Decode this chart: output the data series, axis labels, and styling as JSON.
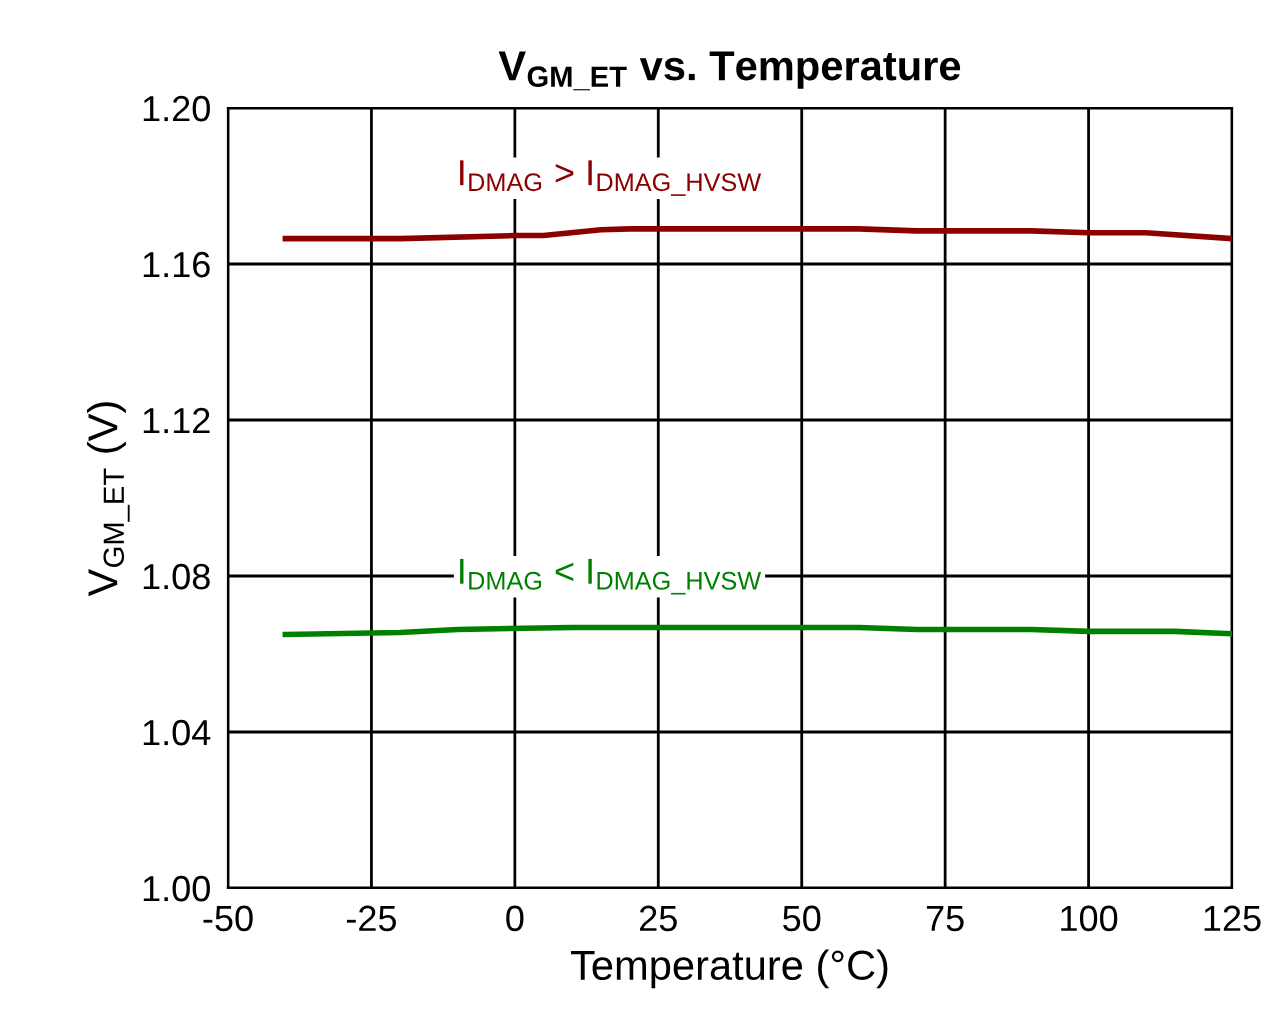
{
  "chart_data": {
    "type": "line",
    "title": "V$_{GM_ET}$ vs. Temperature",
    "xlabel": "Temperature (°C)",
    "ylabel": "V$_{GM_ET}$ (V)",
    "xlim": [
      -50,
      125
    ],
    "xticks": [
      -50,
      -25,
      0,
      25,
      50,
      75,
      100,
      125
    ],
    "ylim": [
      1.0,
      1.2
    ],
    "yticks": [
      {
        "value": 1.0,
        "label": "1.00"
      },
      {
        "value": 1.04,
        "label": "1.04"
      },
      {
        "value": 1.08,
        "label": "1.08"
      },
      {
        "value": 1.12,
        "label": "1.12"
      },
      {
        "value": 1.16,
        "label": "1.16"
      },
      {
        "value": 1.2,
        "label": "1.20"
      }
    ],
    "grid": true,
    "legend": false,
    "marker": "none",
    "line_style": "solid",
    "series": [
      {
        "name": "I$_{DMAG}$ > I$_{DMAG_HVSW}$",
        "color": "#8b0000",
        "x": [
          -40,
          -20,
          0,
          5,
          15,
          20,
          40,
          60,
          70,
          90,
          100,
          110,
          125
        ],
        "values": [
          1.1665,
          1.1665,
          1.1673,
          1.1673,
          1.1688,
          1.169,
          1.169,
          1.169,
          1.1685,
          1.1685,
          1.168,
          1.168,
          1.1665
        ]
      },
      {
        "name": "I$_{DMAG}$ < I$_{DMAG_HVSW}$",
        "color": "#008000",
        "x": [
          -40,
          -20,
          -10,
          10,
          25,
          60,
          70,
          90,
          100,
          115,
          125
        ],
        "values": [
          1.065,
          1.0655,
          1.0663,
          1.0668,
          1.0668,
          1.0668,
          1.0663,
          1.0663,
          1.0658,
          1.0658,
          1.0652
        ]
      }
    ]
  }
}
